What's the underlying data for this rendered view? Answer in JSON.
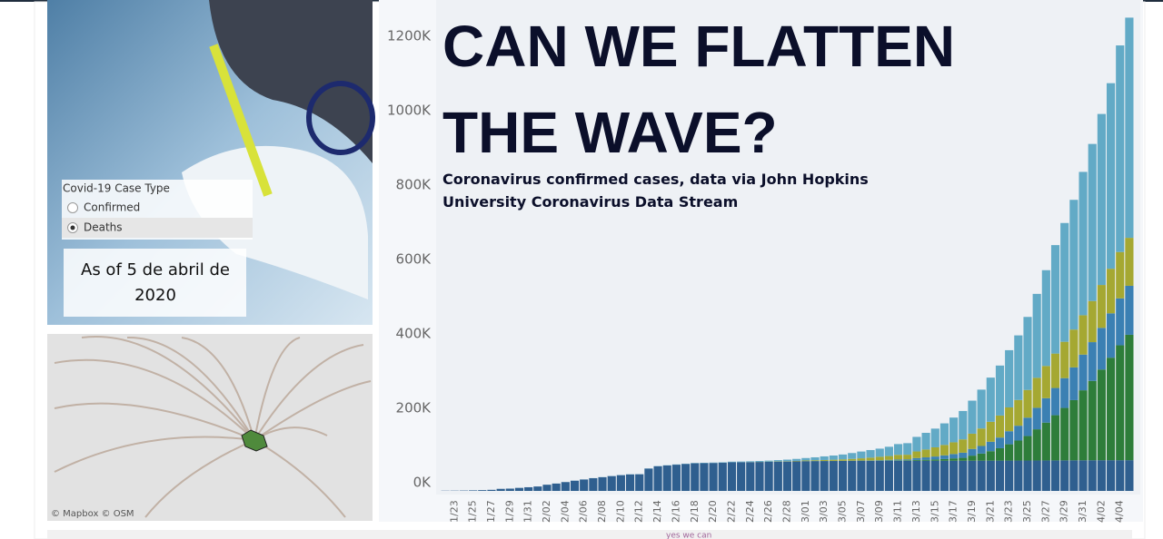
{
  "widget": {
    "title": "Covid-19 Case Type",
    "options": [
      "Confirmed",
      "Deaths"
    ],
    "selected": 1
  },
  "as_of": "As of 5 de abril de 2020",
  "map_credits": "© Mapbox  © OSM",
  "footer": "yes we can",
  "chart_data": {
    "type": "stacked_bar",
    "title": "CAN WE FLATTEN THE WAVE?",
    "subtitle": "Coronavirus confirmed cases, data via John Hopkins University Coronavirus Data Stream",
    "categories": [
      null,
      "1/23",
      null,
      "1/25",
      null,
      "1/27",
      null,
      "1/29",
      null,
      "1/31",
      null,
      "2/02",
      null,
      "2/04",
      null,
      "2/06",
      null,
      "2/08",
      null,
      "2/10",
      null,
      "2/12",
      null,
      "2/14",
      null,
      "2/16",
      null,
      "2/18",
      null,
      "2/20",
      null,
      "2/22",
      null,
      "2/24",
      null,
      "2/26",
      null,
      "2/28",
      null,
      "3/01",
      null,
      "3/03",
      null,
      "3/05",
      null,
      "3/07",
      null,
      "3/09",
      null,
      "3/11",
      null,
      "3/13",
      null,
      "3/15",
      null,
      "3/17",
      null,
      "3/19",
      null,
      "3/21",
      null,
      "3/23",
      null,
      "3/25",
      null,
      "3/27",
      null,
      "3/29",
      null,
      "3/31",
      null,
      "4/02",
      null,
      "4/04",
      null
    ],
    "series": [
      {
        "color": "#2f5f8f",
        "values": [
          548,
          643,
          920,
          1406,
          2075,
          2877,
          5509,
          6087,
          8141,
          9802,
          11891,
          16630,
          19716,
          23707,
          27440,
          30587,
          34110,
          36814,
          39829,
          42354,
          44386,
          44759,
          59895,
          66358,
          68413,
          70513,
          72434,
          74211,
          74619,
          75077,
          75550,
          77001,
          77022,
          77241,
          77754,
          78166,
          78600,
          78928,
          79356,
          79932,
          80136,
          80261,
          80386,
          80537,
          80690,
          80770,
          80823,
          80860,
          80887,
          80921,
          80932,
          80945,
          80977,
          81003,
          81033,
          81058,
          81102,
          81156,
          81250,
          81305,
          81435,
          81498,
          81591,
          81661,
          81782,
          81897,
          81999,
          82122,
          82198,
          82279,
          82361,
          82432,
          82511,
          82543,
          82602
        ]
      },
      {
        "color": "#2e7d3a",
        "values": [
          1,
          1,
          2,
          2,
          5,
          5,
          5,
          5,
          5,
          6,
          8,
          8,
          11,
          11,
          12,
          12,
          12,
          12,
          12,
          12,
          13,
          13,
          15,
          15,
          15,
          15,
          15,
          15,
          15,
          15,
          35,
          35,
          35,
          53,
          53,
          59,
          60,
          62,
          68,
          75,
          100,
          124,
          158,
          221,
          319,
          435,
          541,
          704,
          994,
          1301,
          1630,
          2183,
          2770,
          3613,
          4596,
          6344,
          7769,
          13680,
          19100,
          25489,
          33276,
          43847,
          53740,
          65778,
          83836,
          101657,
          121465,
          140909,
          161831,
          188172,
          213372,
          243762,
          275586,
          308850,
          337072
        ]
      },
      {
        "color": "#3b80b3",
        "values": [
          0,
          0,
          0,
          0,
          0,
          0,
          0,
          0,
          0,
          0,
          1,
          1,
          1,
          1,
          1,
          1,
          1,
          1,
          2,
          2,
          2,
          2,
          2,
          2,
          2,
          2,
          2,
          2,
          2,
          2,
          2,
          2,
          2,
          2,
          6,
          13,
          15,
          32,
          45,
          84,
          120,
          165,
          222,
          259,
          400,
          500,
          673,
          1073,
          1695,
          2277,
          2277,
          5232,
          6391,
          7798,
          9942,
          11748,
          13910,
          17963,
          20410,
          25374,
          28768,
          35136,
          39885,
          49515,
          57786,
          65719,
          73235,
          80110,
          87956,
          95923,
          104118,
          112065,
          119199,
          126168,
          131646
        ]
      },
      {
        "color": "#a5a832",
        "values": [
          0,
          0,
          0,
          0,
          0,
          0,
          0,
          0,
          0,
          2,
          2,
          2,
          2,
          2,
          2,
          2,
          3,
          3,
          3,
          3,
          3,
          3,
          3,
          3,
          3,
          3,
          3,
          3,
          3,
          3,
          20,
          62,
          155,
          229,
          322,
          453,
          655,
          888,
          1128,
          1694,
          2036,
          2502,
          3089,
          3858,
          4636,
          5883,
          7375,
          9172,
          10149,
          12462,
          12462,
          17660,
          21157,
          24747,
          27980,
          31506,
          35713,
          41035,
          47021,
          53578,
          59138,
          63927,
          69176,
          74386,
          80589,
          86498,
          92472,
          97689,
          101739,
          105792,
          110574,
          115242,
          119827,
          124632,
          128948
        ]
      },
      {
        "color": "#62aac6",
        "values": [
          6,
          10,
          19,
          26,
          38,
          45,
          64,
          74,
          88,
          117,
          136,
          146,
          151,
          171,
          180,
          192,
          265,
          290,
          304,
          391,
          398,
          444,
          453,
          507,
          597,
          691,
          804,
          905,
          1000,
          1100,
          1212,
          1472,
          1744,
          2036,
          2271,
          2697,
          3416,
          4202,
          5414,
          6584,
          7914,
          9788,
          11265,
          13011,
          15756,
          18259,
          20409,
          21781,
          24895,
          28914,
          31051,
          39185,
          44806,
          50293,
          58023,
          66446,
          76327,
          88736,
          104427,
          118761,
          134336,
          153827,
          173653,
          196313,
          225598,
          257520,
          291535,
          319287,
          348641,
          385321,
          422180,
          459656,
          498794,
          555212,
          591847
        ]
      }
    ],
    "ylim": [
      0,
      1300000
    ],
    "yticks": [
      {
        "value": 0,
        "label": "0K"
      },
      {
        "value": 200000,
        "label": "200K"
      },
      {
        "value": 400000,
        "label": "400K"
      },
      {
        "value": 600000,
        "label": "600K"
      },
      {
        "value": 800000,
        "label": "800K"
      },
      {
        "value": 1000000,
        "label": "1000K"
      },
      {
        "value": 1200000,
        "label": "1200K"
      }
    ]
  }
}
